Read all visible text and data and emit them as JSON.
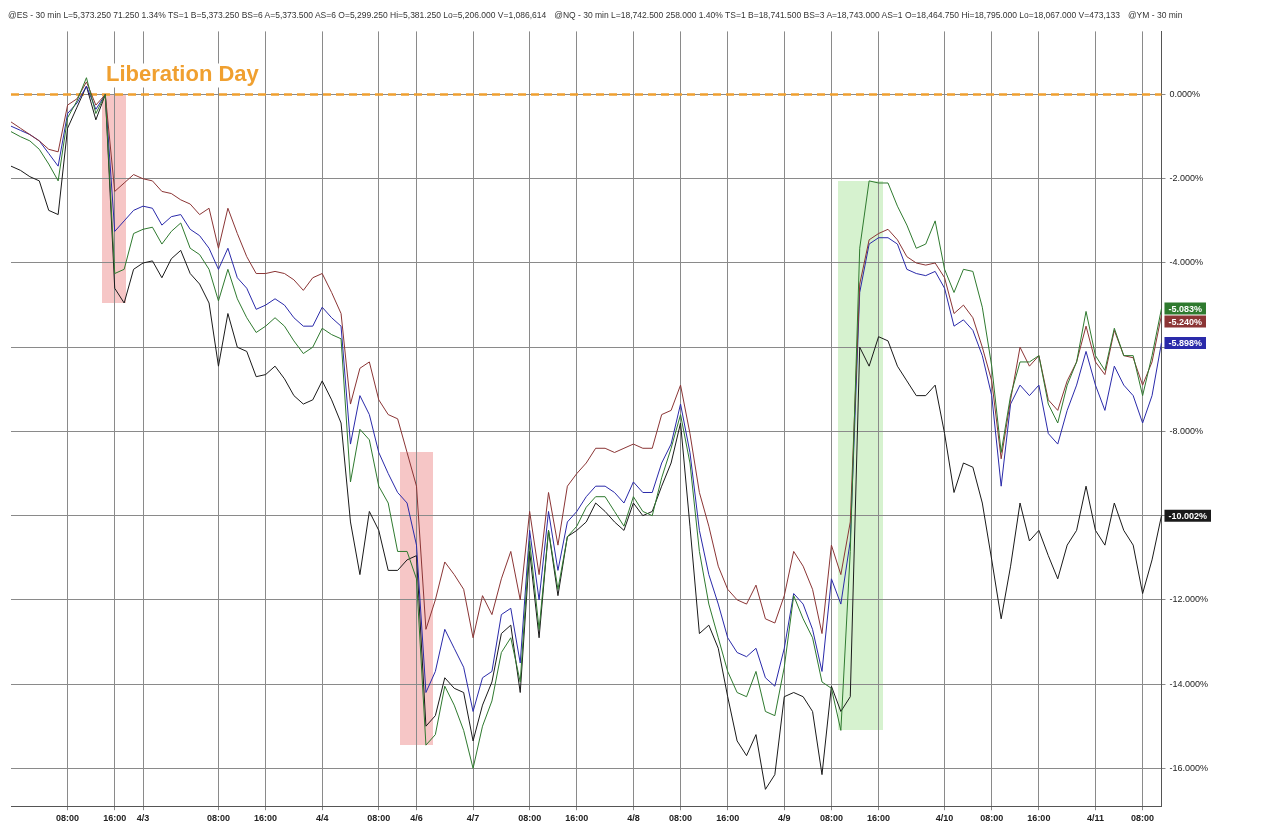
{
  "chart_data": {
    "type": "line",
    "annotations": [
      "@ES - 30 min   L=5,373.250  71.250  1.34%  TS=1  B=5,373.250  BS=6  A=5,373.500  AS=6  O=5,299.250  Hi=5,381.250  Lo=5,206.000  V=1,086,614",
      "@NQ - 30 min   L=18,742.500  258.000  1.40%  TS=1  B=18,741.500  BS=3  A=18,743.000  AS=1  O=18,464.750  Hi=18,795.000  Lo=18,067.000  V=473,133",
      "@YM - 30 min"
    ],
    "categories": [
      null,
      null,
      null,
      null,
      null,
      null,
      "08:00",
      null,
      null,
      null,
      null,
      "16:00",
      null,
      null,
      "4/3",
      null,
      null,
      null,
      null,
      null,
      null,
      null,
      "08:00",
      null,
      null,
      null,
      null,
      "16:00",
      null,
      null,
      null,
      null,
      null,
      "4/4",
      null,
      null,
      null,
      null,
      null,
      "08:00",
      null,
      null,
      null,
      "4/6",
      null,
      null,
      null,
      null,
      null,
      "4/7",
      null,
      null,
      null,
      null,
      null,
      "08:00",
      null,
      null,
      null,
      null,
      "16:00",
      null,
      null,
      null,
      null,
      null,
      "4/8",
      null,
      null,
      null,
      null,
      "08:00",
      null,
      null,
      null,
      null,
      "16:00",
      null,
      null,
      null,
      null,
      null,
      "4/9",
      null,
      null,
      null,
      null,
      "08:00",
      null,
      null,
      null,
      null,
      "16:00",
      null,
      null,
      null,
      null,
      null,
      null,
      "4/10",
      null,
      null,
      null,
      null,
      "08:00",
      null,
      null,
      null,
      null,
      "16:00",
      null,
      null,
      null,
      null,
      null,
      "4/11",
      null,
      null,
      null,
      null,
      "08:00",
      null,
      null
    ],
    "series": [
      {
        "color": "#2f7a2f",
        "values": [
          -0.88,
          -1.0,
          -1.1,
          -1.3,
          -1.65,
          -2.05,
          -0.55,
          -0.15,
          0.4,
          -0.45,
          0,
          -4.25,
          -4.15,
          -3.3,
          -3.2,
          -3.15,
          -3.55,
          -3.25,
          -3.05,
          -3.65,
          -3.8,
          -4.15,
          -4.9,
          -4.15,
          -4.85,
          -5.3,
          -5.65,
          -5.5,
          -5.3,
          -5.5,
          -5.85,
          -6.15,
          -6.0,
          -5.55,
          -5.7,
          -5.8,
          -9.2,
          -7.95,
          -8.2,
          -9.3,
          -9.7,
          -10.85,
          -10.85,
          -11.5,
          -15.45,
          -15.2,
          -14.05,
          -14.5,
          -15.1,
          -16.0,
          -15.0,
          -14.4,
          -13.25,
          -12.9,
          -13.95,
          -10.6,
          -12.7,
          -10.35,
          -11.75,
          -10.5,
          -10.25,
          -9.8,
          -9.55,
          -9.55,
          -9.9,
          -10.25,
          -9.55,
          -9.9,
          -10.0,
          -9.1,
          -8.4,
          -7.6,
          -8.75,
          -10.85,
          -12.1,
          -12.9,
          -13.7,
          -14.2,
          -14.3,
          -13.7,
          -14.65,
          -14.75,
          -13.6,
          -11.9,
          -12.45,
          -12.9,
          -13.95,
          -14.1,
          -15.1,
          -10.85,
          -3.65,
          -2.05,
          -2.1,
          -2.1,
          -2.65,
          -3.1,
          -3.65,
          -3.55,
          -3.0,
          -4.15,
          -4.7,
          -4.15,
          -4.2,
          -5.05,
          -6.45,
          -8.5,
          -7.15,
          -6.35,
          -6.35,
          -6.2,
          -7.35,
          -7.8,
          -6.9,
          -6.35,
          -5.15,
          -6.2,
          -6.55,
          -5.55,
          -6.2,
          -6.2,
          -7.15,
          -6.2,
          -5.083
        ],
        "value_labels": [
          null,
          null,
          null,
          null,
          null,
          null,
          null,
          null,
          null,
          null,
          null,
          null,
          null,
          null,
          null,
          null,
          null,
          null,
          null,
          null,
          null,
          null,
          null,
          null,
          null,
          null,
          null,
          null,
          null,
          null,
          null,
          null,
          null,
          null,
          null,
          null,
          null,
          null,
          null,
          null,
          null,
          null,
          null,
          null,
          null,
          null,
          null,
          null,
          null,
          null,
          null,
          null,
          null,
          null,
          null,
          null,
          null,
          null,
          null,
          null,
          null,
          null,
          null,
          null,
          null,
          null,
          null,
          null,
          null,
          null,
          null,
          null,
          null,
          null,
          null,
          null,
          null,
          null,
          null,
          null,
          null,
          null,
          null,
          null,
          null,
          null,
          null,
          null,
          null,
          null,
          null,
          null,
          null,
          null,
          null,
          null,
          null,
          null,
          null,
          null,
          null,
          null,
          null,
          null,
          null,
          null,
          null,
          null,
          null,
          null,
          null,
          null,
          null,
          null,
          null,
          null,
          null,
          null,
          null,
          null,
          null,
          null,
          "-5.083%"
        ]
      },
      {
        "color": "#8b3535",
        "values": [
          -0.65,
          -0.8,
          -0.95,
          -1.1,
          -1.3,
          -1.36,
          -0.25,
          -0.1,
          0.3,
          -0.25,
          0,
          -2.3,
          -2.1,
          -1.9,
          -2.0,
          -2.05,
          -2.3,
          -2.35,
          -2.5,
          -2.6,
          -2.85,
          -2.7,
          -3.65,
          -2.7,
          -3.3,
          -3.85,
          -4.25,
          -4.25,
          -4.2,
          -4.25,
          -4.4,
          -4.65,
          -4.35,
          -4.25,
          -4.7,
          -5.2,
          -7.35,
          -6.5,
          -6.35,
          -7.25,
          -7.6,
          -7.7,
          -8.5,
          -9.3,
          -12.7,
          -12.0,
          -11.1,
          -11.4,
          -11.75,
          -12.9,
          -11.9,
          -12.35,
          -11.5,
          -10.85,
          -12.0,
          -9.9,
          -11.4,
          -9.45,
          -10.7,
          -9.3,
          -9.0,
          -8.75,
          -8.4,
          -8.4,
          -8.5,
          -8.4,
          -8.3,
          -8.4,
          -8.4,
          -7.6,
          -7.5,
          -6.9,
          -8.05,
          -9.45,
          -10.25,
          -11.2,
          -11.75,
          -12.0,
          -12.1,
          -11.65,
          -12.45,
          -12.55,
          -11.9,
          -10.85,
          -11.2,
          -11.75,
          -12.8,
          -10.7,
          -11.4,
          -10.15,
          -4.5,
          -3.45,
          -3.3,
          -3.2,
          -3.45,
          -3.85,
          -4.0,
          -4.05,
          -4.0,
          -4.35,
          -5.2,
          -5.0,
          -5.3,
          -6.0,
          -6.8,
          -8.65,
          -7.25,
          -6.0,
          -6.45,
          -6.2,
          -7.25,
          -7.5,
          -6.8,
          -6.35,
          -5.5,
          -6.35,
          -6.65,
          -5.6,
          -6.2,
          -6.25,
          -6.9,
          -6.35,
          -5.24
        ],
        "value_labels": [
          null,
          null,
          null,
          null,
          null,
          null,
          null,
          null,
          null,
          null,
          null,
          null,
          null,
          null,
          null,
          null,
          null,
          null,
          null,
          null,
          null,
          null,
          null,
          null,
          null,
          null,
          null,
          null,
          null,
          null,
          null,
          null,
          null,
          null,
          null,
          null,
          null,
          null,
          null,
          null,
          null,
          null,
          null,
          null,
          null,
          null,
          null,
          null,
          null,
          null,
          null,
          null,
          null,
          null,
          null,
          null,
          null,
          null,
          null,
          null,
          null,
          null,
          null,
          null,
          null,
          null,
          null,
          null,
          null,
          null,
          null,
          null,
          null,
          null,
          null,
          null,
          null,
          null,
          null,
          null,
          null,
          null,
          null,
          null,
          null,
          null,
          null,
          null,
          null,
          null,
          null,
          null,
          null,
          null,
          null,
          null,
          null,
          null,
          null,
          null,
          null,
          null,
          null,
          null,
          null,
          null,
          null,
          null,
          null,
          null,
          null,
          null,
          null,
          null,
          null,
          null,
          null,
          null,
          null,
          null,
          null,
          null,
          "-5.240%"
        ]
      },
      {
        "color": "#2a2aaa",
        "values": [
          -0.75,
          -0.85,
          -0.95,
          -1.1,
          -1.4,
          -1.7,
          -0.45,
          -0.2,
          0.2,
          -0.35,
          0,
          -3.25,
          -3.0,
          -2.75,
          -2.65,
          -2.7,
          -3.1,
          -2.9,
          -2.85,
          -3.2,
          -3.35,
          -3.65,
          -4.15,
          -3.65,
          -4.35,
          -4.6,
          -5.1,
          -5.0,
          -4.85,
          -5.0,
          -5.3,
          -5.5,
          -5.5,
          -5.05,
          -5.3,
          -5.5,
          -8.3,
          -7.15,
          -7.6,
          -8.5,
          -9.0,
          -9.45,
          -9.7,
          -10.7,
          -14.2,
          -13.7,
          -12.7,
          -13.15,
          -13.6,
          -14.65,
          -13.85,
          -13.7,
          -12.35,
          -12.2,
          -13.5,
          -10.35,
          -12.0,
          -9.9,
          -11.3,
          -10.15,
          -9.9,
          -9.55,
          -9.3,
          -9.3,
          -9.45,
          -9.7,
          -9.2,
          -9.45,
          -9.45,
          -8.75,
          -8.3,
          -7.35,
          -8.5,
          -10.35,
          -11.4,
          -12.1,
          -12.9,
          -13.25,
          -13.35,
          -13.15,
          -13.85,
          -14.05,
          -13.15,
          -11.85,
          -12.1,
          -12.7,
          -13.7,
          -11.5,
          -12.1,
          -10.6,
          -4.7,
          -3.55,
          -3.4,
          -3.4,
          -3.55,
          -4.15,
          -4.25,
          -4.3,
          -4.2,
          -4.6,
          -5.5,
          -5.35,
          -5.6,
          -6.2,
          -7.15,
          -9.3,
          -7.35,
          -6.9,
          -7.15,
          -6.9,
          -8.05,
          -8.3,
          -7.5,
          -6.9,
          -6.1,
          -6.9,
          -7.5,
          -6.45,
          -6.9,
          -7.15,
          -7.8,
          -7.15,
          -5.898
        ],
        "value_labels": [
          null,
          null,
          null,
          null,
          null,
          null,
          null,
          null,
          null,
          null,
          null,
          null,
          null,
          null,
          null,
          null,
          null,
          null,
          null,
          null,
          null,
          null,
          null,
          null,
          null,
          null,
          null,
          null,
          null,
          null,
          null,
          null,
          null,
          null,
          null,
          null,
          null,
          null,
          null,
          null,
          null,
          null,
          null,
          null,
          null,
          null,
          null,
          null,
          null,
          null,
          null,
          null,
          null,
          null,
          null,
          null,
          null,
          null,
          null,
          null,
          null,
          null,
          null,
          null,
          null,
          null,
          null,
          null,
          null,
          null,
          null,
          null,
          null,
          null,
          null,
          null,
          null,
          null,
          null,
          null,
          null,
          null,
          null,
          null,
          null,
          null,
          null,
          null,
          null,
          null,
          null,
          null,
          null,
          null,
          null,
          null,
          null,
          null,
          null,
          null,
          null,
          null,
          null,
          null,
          null,
          null,
          null,
          null,
          null,
          null,
          null,
          null,
          null,
          null,
          null,
          null,
          null,
          null,
          null,
          null,
          null,
          null,
          "-5.898%"
        ]
      },
      {
        "color": "#1a1a1a",
        "values": [
          -1.7,
          -1.8,
          -1.95,
          -2.05,
          -2.75,
          -2.85,
          -0.8,
          -0.3,
          0.2,
          -0.6,
          0,
          -4.6,
          -4.95,
          -4.15,
          -4.0,
          -3.95,
          -4.35,
          -3.9,
          -3.7,
          -4.25,
          -4.5,
          -4.95,
          -6.45,
          -5.2,
          -6.0,
          -6.1,
          -6.7,
          -6.65,
          -6.45,
          -6.75,
          -7.15,
          -7.35,
          -7.25,
          -6.8,
          -7.25,
          -7.8,
          -10.15,
          -11.4,
          -9.9,
          -10.35,
          -11.3,
          -11.3,
          -11.05,
          -10.95,
          -15.0,
          -14.75,
          -13.85,
          -14.1,
          -14.2,
          -15.35,
          -14.5,
          -13.95,
          -12.8,
          -12.6,
          -14.2,
          -10.85,
          -12.9,
          -10.35,
          -11.9,
          -10.5,
          -10.35,
          -10.15,
          -9.7,
          -9.9,
          -10.15,
          -10.35,
          -9.7,
          -10.0,
          -9.9,
          -9.3,
          -8.75,
          -7.8,
          -10.25,
          -12.8,
          -12.6,
          -13.15,
          -14.3,
          -15.35,
          -15.7,
          -15.2,
          -16.5,
          -16.15,
          -14.3,
          -14.2,
          -14.3,
          -14.65,
          -16.15,
          -14.05,
          -14.65,
          -14.3,
          -6.0,
          -6.45,
          -5.75,
          -5.85,
          -6.45,
          -6.8,
          -7.15,
          -7.15,
          -6.9,
          -8.05,
          -9.45,
          -8.75,
          -8.85,
          -9.7,
          -11.05,
          -12.45,
          -11.2,
          -9.7,
          -10.6,
          -10.35,
          -10.95,
          -11.5,
          -10.7,
          -10.35,
          -9.3,
          -10.35,
          -10.7,
          -9.7,
          -10.35,
          -10.7,
          -11.85,
          -11.05,
          -10.002
        ],
        "value_labels": [
          null,
          null,
          null,
          null,
          null,
          null,
          null,
          null,
          null,
          null,
          null,
          null,
          null,
          null,
          null,
          null,
          null,
          null,
          null,
          null,
          null,
          null,
          null,
          null,
          null,
          null,
          null,
          null,
          null,
          null,
          null,
          null,
          null,
          null,
          null,
          null,
          null,
          null,
          null,
          null,
          null,
          null,
          null,
          null,
          null,
          null,
          null,
          null,
          null,
          null,
          null,
          null,
          null,
          null,
          null,
          null,
          null,
          null,
          null,
          null,
          null,
          null,
          null,
          null,
          null,
          null,
          null,
          null,
          null,
          null,
          null,
          null,
          null,
          null,
          null,
          null,
          null,
          null,
          null,
          null,
          null,
          null,
          null,
          null,
          null,
          null,
          null,
          null,
          null,
          null,
          null,
          null,
          null,
          null,
          null,
          null,
          null,
          null,
          null,
          null,
          null,
          null,
          null,
          null,
          null,
          null,
          null,
          null,
          null,
          null,
          null,
          null,
          null,
          null,
          null,
          null,
          null,
          null,
          null,
          null,
          null,
          null,
          "-10.002%"
        ]
      }
    ],
    "ylim": [
      -16.9,
      1.5
    ],
    "yticks": [
      {
        "value": 0,
        "label": "0.000%"
      },
      {
        "value": -2,
        "label": "-2.000%"
      },
      {
        "value": -4,
        "label": "-4.000%"
      },
      {
        "value": -6,
        "label": null
      },
      {
        "value": -8,
        "label": "-8.000%"
      },
      {
        "value": -10,
        "label": null
      },
      {
        "value": -12,
        "label": "-12.000%"
      },
      {
        "value": -14,
        "label": "-14.000%"
      },
      {
        "value": -16,
        "label": "-16.000%"
      }
    ],
    "grid": true,
    "legend": false,
    "ref_lines": [
      {
        "axis": "y",
        "value": 0,
        "label": "Liberation Day",
        "color": "#f0a030",
        "line_style": "dashed"
      }
    ]
  }
}
